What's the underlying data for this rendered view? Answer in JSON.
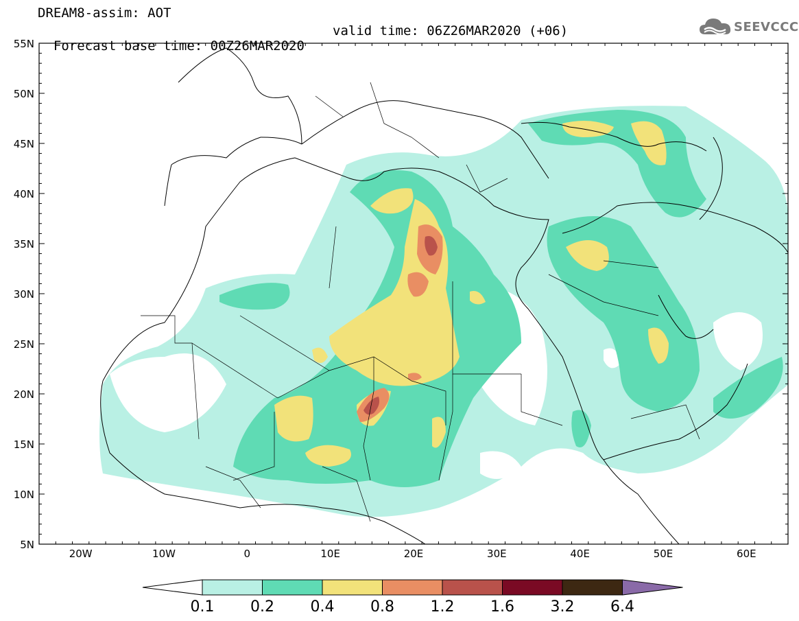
{
  "header": {
    "title_line1": "DREAM8-assim: AOT",
    "base_time": "Forecast base time: 00Z26MAR2020",
    "valid_time": "valid time: 06Z26MAR2020 (+06)"
  },
  "logo": {
    "text": "SEEVCCC",
    "icon": "cloud-icon"
  },
  "map": {
    "lat_labels": [
      "55N",
      "50N",
      "45N",
      "40N",
      "35N",
      "30N",
      "25N",
      "20N",
      "15N",
      "10N",
      "5N"
    ],
    "lon_labels": [
      "20W",
      "10W",
      "0",
      "10E",
      "20E",
      "30E",
      "40E",
      "50E",
      "60E"
    ],
    "extent": {
      "lon_min": -25,
      "lon_max": 65,
      "lat_min": 5,
      "lat_max": 55
    }
  },
  "colorbar": {
    "levels": [
      "0.1",
      "0.2",
      "0.4",
      "0.8",
      "1.2",
      "1.6",
      "3.2",
      "6.4"
    ],
    "colors": [
      "#b9f0e4",
      "#5fdbb4",
      "#f2e27a",
      "#e98e63",
      "#b9524b",
      "#7a0a24",
      "#3d2812",
      "#8a6aa8"
    ],
    "under_color": "#ffffff"
  }
}
